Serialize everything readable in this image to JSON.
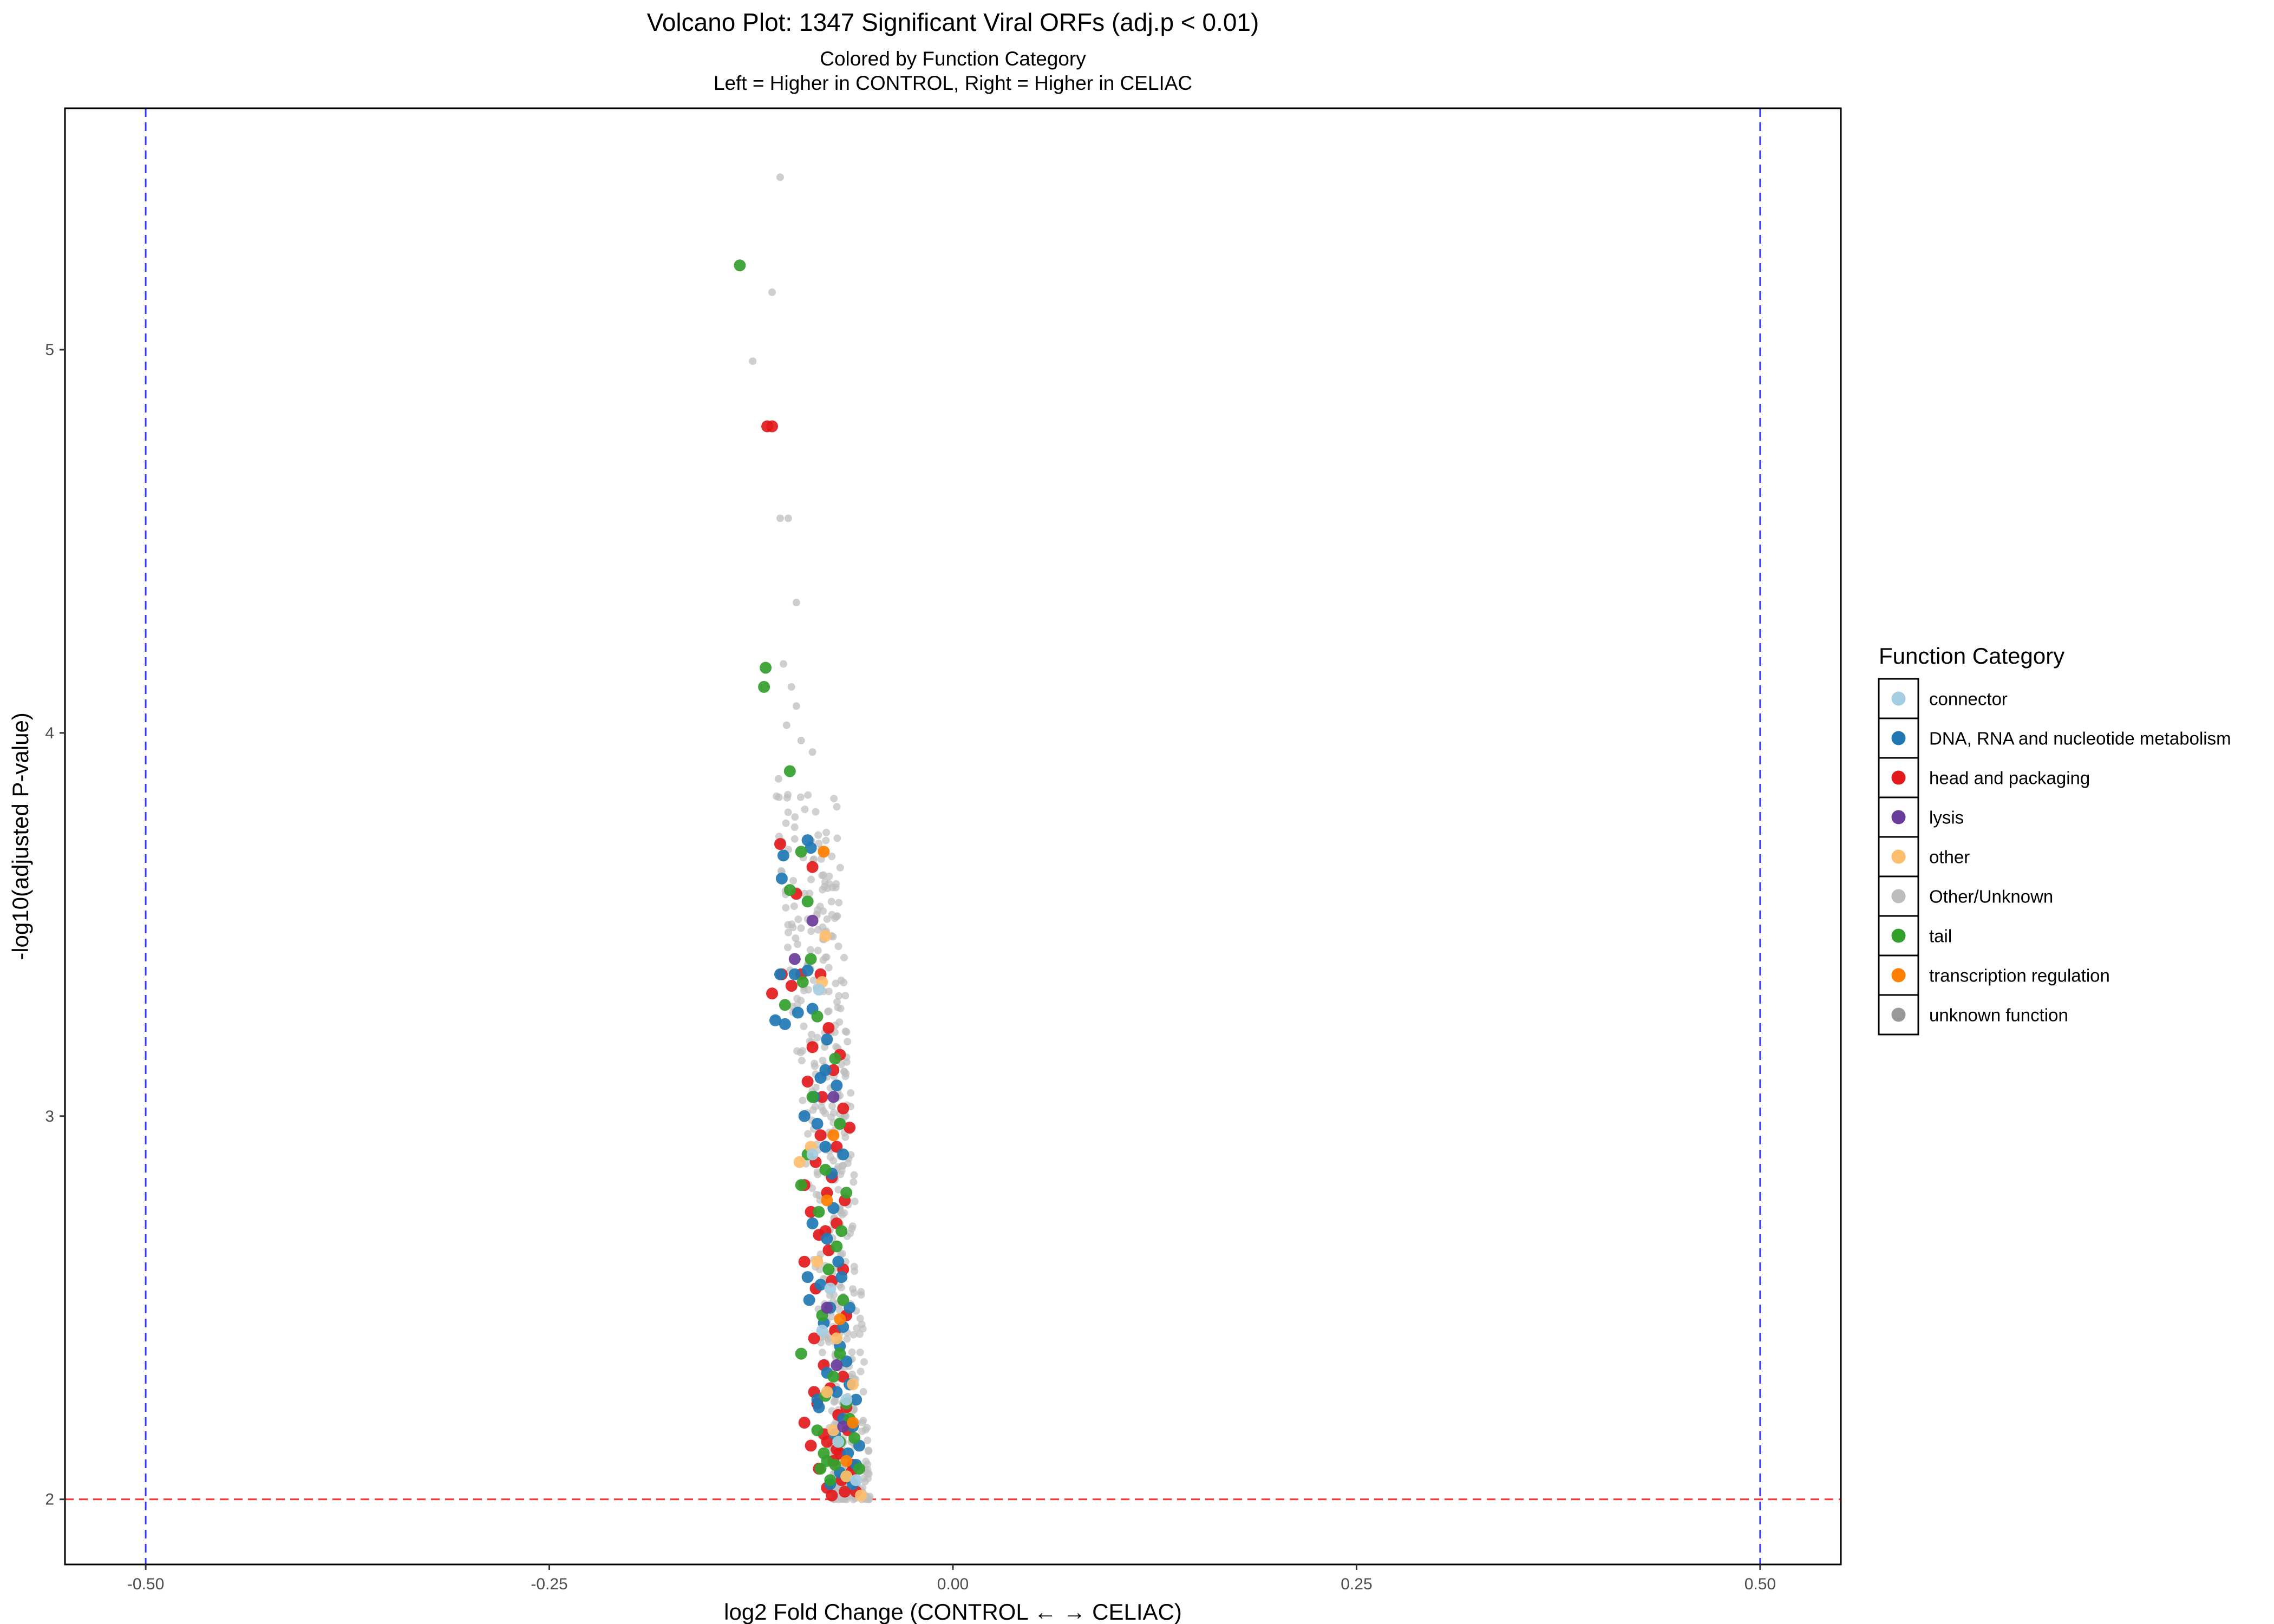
{
  "chart_data": {
    "type": "scatter",
    "title": "Volcano Plot: 1347 Significant Viral ORFs (adj.p < 0.01)",
    "subtitle_lines": [
      "Colored by Function Category",
      "Left = Higher in CONTROL, Right = Higher in CELIAC"
    ],
    "xlabel": "log2 Fold Change (CONTROL ← → CELIAC)",
    "ylabel": "-log10(adjusted P-value)",
    "xlim": [
      -0.55,
      0.55
    ],
    "ylim": [
      1.83,
      5.63
    ],
    "x_ticks": [
      -0.5,
      -0.25,
      0,
      0.25,
      0.5
    ],
    "x_tick_labels": [
      "-0.50",
      "-0.25",
      "0.00",
      "0.25",
      "0.50"
    ],
    "y_ticks": [
      2,
      3,
      4,
      5
    ],
    "y_tick_labels": [
      "2",
      "3",
      "4",
      "5"
    ],
    "grid": false,
    "reference_lines": [
      {
        "orientation": "vertical",
        "value": -0.5,
        "color": "#3333ff",
        "style": "dashed"
      },
      {
        "orientation": "vertical",
        "value": 0.5,
        "color": "#3333ff",
        "style": "dashed"
      },
      {
        "orientation": "horizontal",
        "value": 2,
        "color": "#ff3333",
        "style": "dashed"
      }
    ],
    "legend": {
      "title": "Function Category",
      "placement": "right",
      "entries": [
        {
          "label": "connector",
          "color": "#a6cee3"
        },
        {
          "label": "DNA, RNA and nucleotide metabolism",
          "color": "#1f78b4"
        },
        {
          "label": "head and packaging",
          "color": "#e31a1c"
        },
        {
          "label": "lysis",
          "color": "#6a3d9a"
        },
        {
          "label": "other",
          "color": "#fdbf6f"
        },
        {
          "label": "Other/Unknown",
          "color": "#bdbdbd"
        },
        {
          "label": "tail",
          "color": "#33a02c"
        },
        {
          "label": "transcription regulation",
          "color": "#ff7f00"
        },
        {
          "label": "unknown function",
          "color": "#999999"
        }
      ]
    },
    "series": [
      {
        "name": "head and packaging",
        "color": "#e31a1c",
        "points": [
          [
            -0.115,
            4.8
          ],
          [
            -0.112,
            4.8
          ],
          [
            -0.107,
            3.71
          ],
          [
            -0.087,
            3.65
          ],
          [
            -0.097,
            3.58
          ],
          [
            -0.106,
            3.37
          ],
          [
            -0.094,
            3.37
          ],
          [
            -0.082,
            3.37
          ],
          [
            -0.1,
            3.34
          ],
          [
            -0.112,
            3.32
          ],
          [
            -0.077,
            3.23
          ],
          [
            -0.087,
            3.18
          ],
          [
            -0.074,
            3.12
          ],
          [
            -0.081,
            3.05
          ],
          [
            -0.068,
            3.02
          ],
          [
            -0.082,
            2.95
          ],
          [
            -0.072,
            2.92
          ],
          [
            -0.085,
            2.88
          ],
          [
            -0.075,
            2.84
          ],
          [
            -0.092,
            2.82
          ],
          [
            -0.078,
            2.8
          ],
          [
            -0.067,
            2.78
          ],
          [
            -0.088,
            2.75
          ],
          [
            -0.072,
            2.72
          ],
          [
            -0.083,
            2.69
          ],
          [
            -0.077,
            2.65
          ],
          [
            -0.092,
            2.62
          ],
          [
            -0.068,
            2.6
          ],
          [
            -0.075,
            2.57
          ],
          [
            -0.085,
            2.55
          ],
          [
            -0.066,
            2.48
          ],
          [
            -0.073,
            2.44
          ],
          [
            -0.08,
            2.35
          ],
          [
            -0.068,
            2.32
          ],
          [
            -0.076,
            2.29
          ],
          [
            -0.084,
            2.25
          ],
          [
            -0.071,
            2.22
          ],
          [
            -0.092,
            2.2
          ],
          [
            -0.065,
            2.18
          ],
          [
            -0.078,
            2.15
          ],
          [
            -0.088,
            2.14
          ],
          [
            -0.07,
            2.12
          ],
          [
            -0.074,
            2.1
          ],
          [
            -0.083,
            2.08
          ],
          [
            -0.063,
            2.07
          ],
          [
            -0.069,
            2.05
          ],
          [
            -0.078,
            2.03
          ],
          [
            -0.067,
            2.02
          ],
          [
            -0.075,
            2.01
          ],
          [
            -0.06,
            2.02
          ],
          [
            -0.072,
            2.13
          ],
          [
            -0.08,
            2.17
          ],
          [
            -0.066,
            2.24
          ],
          [
            -0.086,
            2.28
          ],
          [
            -0.062,
            2.09
          ],
          [
            -0.07,
            3.16
          ],
          [
            -0.09,
            3.09
          ],
          [
            -0.064,
            2.97
          ],
          [
            -0.079,
            2.7
          ],
          [
            -0.086,
            2.42
          ]
        ]
      },
      {
        "name": "DNA, RNA and nucleotide metabolism",
        "color": "#1f78b4",
        "points": [
          [
            -0.105,
            3.68
          ],
          [
            -0.09,
            3.72
          ],
          [
            -0.088,
            3.7
          ],
          [
            -0.106,
            3.62
          ],
          [
            -0.107,
            3.37
          ],
          [
            -0.11,
            3.25
          ],
          [
            -0.104,
            3.24
          ],
          [
            -0.098,
            3.37
          ],
          [
            -0.09,
            3.38
          ],
          [
            -0.087,
            3.28
          ],
          [
            -0.078,
            3.2
          ],
          [
            -0.082,
            3.1
          ],
          [
            -0.072,
            3.08
          ],
          [
            -0.079,
            3.12
          ],
          [
            -0.092,
            3.0
          ],
          [
            -0.084,
            2.98
          ],
          [
            -0.068,
            2.9
          ],
          [
            -0.075,
            2.85
          ],
          [
            -0.087,
            2.72
          ],
          [
            -0.078,
            2.68
          ],
          [
            -0.071,
            2.62
          ],
          [
            -0.09,
            2.58
          ],
          [
            -0.082,
            2.56
          ],
          [
            -0.089,
            2.52
          ],
          [
            -0.076,
            2.5
          ],
          [
            -0.064,
            2.5
          ],
          [
            -0.08,
            2.46
          ],
          [
            -0.07,
            2.4
          ],
          [
            -0.066,
            2.36
          ],
          [
            -0.078,
            2.33
          ],
          [
            -0.064,
            2.3
          ],
          [
            -0.072,
            2.28
          ],
          [
            -0.06,
            2.26
          ],
          [
            -0.083,
            2.24
          ],
          [
            -0.068,
            2.21
          ],
          [
            -0.062,
            2.19
          ],
          [
            -0.073,
            2.17
          ],
          [
            -0.058,
            2.14
          ],
          [
            -0.065,
            2.12
          ],
          [
            -0.06,
            2.09
          ],
          [
            -0.07,
            2.07
          ],
          [
            -0.076,
            2.04
          ],
          [
            -0.062,
            2.04
          ],
          [
            -0.084,
            2.26
          ],
          [
            -0.079,
            2.92
          ],
          [
            -0.074,
            2.76
          ],
          [
            -0.069,
            2.58
          ],
          [
            -0.096,
            3.27
          ],
          [
            -0.086,
            3.05
          ],
          [
            -0.068,
            2.45
          ]
        ]
      },
      {
        "name": "tail",
        "color": "#33a02c",
        "points": [
          [
            -0.132,
            5.22
          ],
          [
            -0.116,
            4.17
          ],
          [
            -0.117,
            4.12
          ],
          [
            -0.101,
            3.9
          ],
          [
            -0.094,
            3.69
          ],
          [
            -0.101,
            3.59
          ],
          [
            -0.09,
            3.56
          ],
          [
            -0.088,
            3.41
          ],
          [
            -0.093,
            3.35
          ],
          [
            -0.104,
            3.29
          ],
          [
            -0.084,
            3.26
          ],
          [
            -0.073,
            3.15
          ],
          [
            -0.087,
            3.05
          ],
          [
            -0.07,
            2.98
          ],
          [
            -0.09,
            2.9
          ],
          [
            -0.079,
            2.86
          ],
          [
            -0.094,
            2.82
          ],
          [
            -0.066,
            2.8
          ],
          [
            -0.083,
            2.75
          ],
          [
            -0.072,
            2.66
          ],
          [
            -0.077,
            2.6
          ],
          [
            -0.068,
            2.52
          ],
          [
            -0.081,
            2.48
          ],
          [
            -0.07,
            2.38
          ],
          [
            -0.094,
            2.38
          ],
          [
            -0.074,
            2.32
          ],
          [
            -0.079,
            2.27
          ],
          [
            -0.066,
            2.25
          ],
          [
            -0.084,
            2.18
          ],
          [
            -0.07,
            2.15
          ],
          [
            -0.08,
            2.12
          ],
          [
            -0.078,
            2.1
          ],
          [
            -0.073,
            2.09
          ],
          [
            -0.082,
            2.08
          ],
          [
            -0.066,
            2.06
          ],
          [
            -0.058,
            2.08
          ],
          [
            -0.064,
            2.21
          ],
          [
            -0.061,
            2.16
          ],
          [
            -0.076,
            2.05
          ],
          [
            -0.069,
            2.7
          ]
        ]
      },
      {
        "name": "other",
        "color": "#fdbf6f",
        "points": [
          [
            -0.079,
            3.47
          ],
          [
            -0.081,
            3.35
          ],
          [
            -0.095,
            2.88
          ],
          [
            -0.084,
            2.62
          ],
          [
            -0.072,
            2.42
          ],
          [
            -0.078,
            2.28
          ],
          [
            -0.066,
            2.06
          ],
          [
            -0.057,
            2.01
          ],
          [
            -0.062,
            2.3
          ],
          [
            -0.074,
            2.18
          ],
          [
            -0.088,
            2.92
          ]
        ]
      },
      {
        "name": "connector",
        "color": "#a6cee3",
        "points": [
          [
            -0.083,
            3.33
          ],
          [
            -0.087,
            2.9
          ],
          [
            -0.076,
            2.55
          ],
          [
            -0.066,
            2.26
          ],
          [
            -0.071,
            2.15
          ],
          [
            -0.06,
            2.05
          ],
          [
            -0.081,
            2.44
          ]
        ]
      },
      {
        "name": "lysis",
        "color": "#6a3d9a",
        "points": [
          [
            -0.087,
            3.51
          ],
          [
            -0.098,
            3.41
          ],
          [
            -0.074,
            3.05
          ],
          [
            -0.078,
            2.5
          ],
          [
            -0.072,
            2.35
          ],
          [
            -0.068,
            2.19
          ]
        ]
      },
      {
        "name": "transcription regulation",
        "color": "#ff7f00",
        "points": [
          [
            -0.08,
            3.69
          ],
          [
            -0.074,
            2.95
          ],
          [
            -0.07,
            2.47
          ],
          [
            -0.062,
            2.2
          ],
          [
            -0.078,
            2.78
          ],
          [
            -0.066,
            2.1
          ]
        ]
      }
    ]
  }
}
